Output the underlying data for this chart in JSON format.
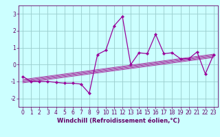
{
  "x": [
    0,
    1,
    2,
    3,
    4,
    5,
    6,
    7,
    8,
    9,
    10,
    11,
    12,
    13,
    14,
    15,
    16,
    17,
    18,
    19,
    20,
    21,
    22,
    23
  ],
  "y_main": [
    -0.7,
    -1.0,
    -1.0,
    -1.0,
    -1.05,
    -1.1,
    -1.1,
    -1.15,
    -1.7,
    0.6,
    0.85,
    2.3,
    2.85,
    0.0,
    0.7,
    0.65,
    1.8,
    0.65,
    0.7,
    0.35,
    0.35,
    0.75,
    -0.55,
    0.6
  ],
  "trend_lines": [
    {
      "x0": 0,
      "y0": -0.88,
      "x1": 23,
      "y1": 0.62
    },
    {
      "x0": 0,
      "y0": -0.93,
      "x1": 23,
      "y1": 0.57
    },
    {
      "x0": 0,
      "y0": -0.98,
      "x1": 23,
      "y1": 0.52
    },
    {
      "x0": 0,
      "y0": -1.03,
      "x1": 23,
      "y1": 0.47
    },
    {
      "x0": 0,
      "y0": -1.08,
      "x1": 23,
      "y1": 0.42
    }
  ],
  "color_main": "#990099",
  "color_trend": "#aa44aa",
  "bg_color": "#ccffff",
  "grid_color": "#99cccc",
  "xlabel": "Windchill (Refroidissement éolien,°C)",
  "xlim": [
    -0.5,
    23.5
  ],
  "ylim": [
    -2.5,
    3.5
  ],
  "yticks": [
    -2,
    -1,
    0,
    1,
    2,
    3
  ],
  "xticks": [
    0,
    1,
    2,
    3,
    4,
    5,
    6,
    7,
    8,
    9,
    10,
    11,
    12,
    13,
    14,
    15,
    16,
    17,
    18,
    19,
    20,
    21,
    22,
    23
  ],
  "marker": "D",
  "markersize": 2.2,
  "linewidth": 0.9,
  "trend_linewidth": 0.7,
  "xlabel_fontsize": 6.0,
  "tick_fontsize": 5.5,
  "tick_color": "#660066",
  "spine_color": "#660066"
}
